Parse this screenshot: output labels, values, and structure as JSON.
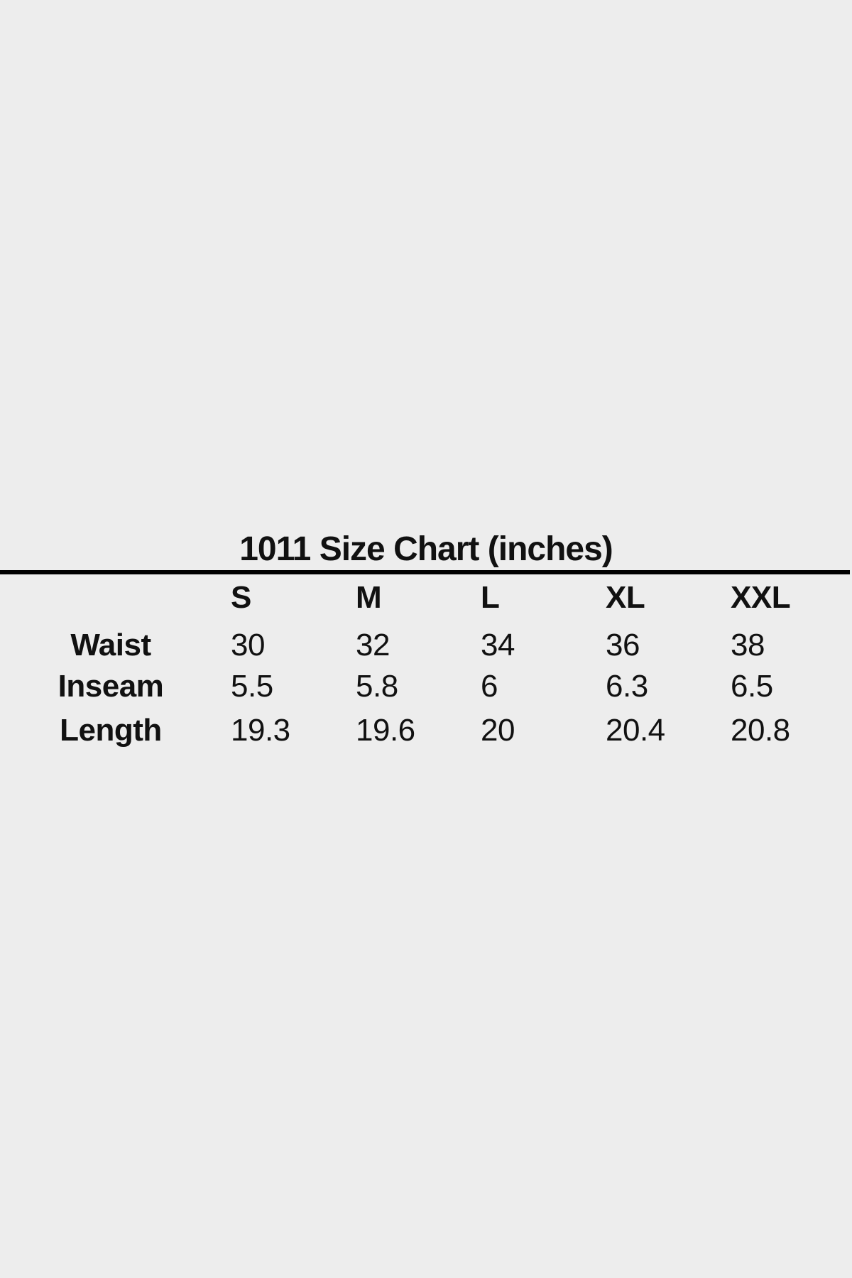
{
  "chart_data": {
    "type": "table",
    "title": "1011 Size Chart (inches)",
    "columns": [
      "",
      "S",
      "M",
      "L",
      "XL",
      "XXL"
    ],
    "row_labels": [
      "Waist",
      "Inseam",
      "Length"
    ],
    "rows": [
      [
        "Waist",
        "30",
        "32",
        "34",
        "36",
        "38"
      ],
      [
        "Inseam",
        "5.5",
        "5.8",
        "6",
        "6.3",
        "6.5"
      ],
      [
        "Length",
        "19.3",
        "19.6",
        "20",
        "20.4",
        "20.8"
      ]
    ],
    "units": "inches",
    "layout": "title centered above full-width black rule; first column bold centered row labels; data columns left-aligned; no cell borders"
  },
  "colors": {
    "background": "#ededed",
    "text": "#111111",
    "divider": "#000000"
  }
}
